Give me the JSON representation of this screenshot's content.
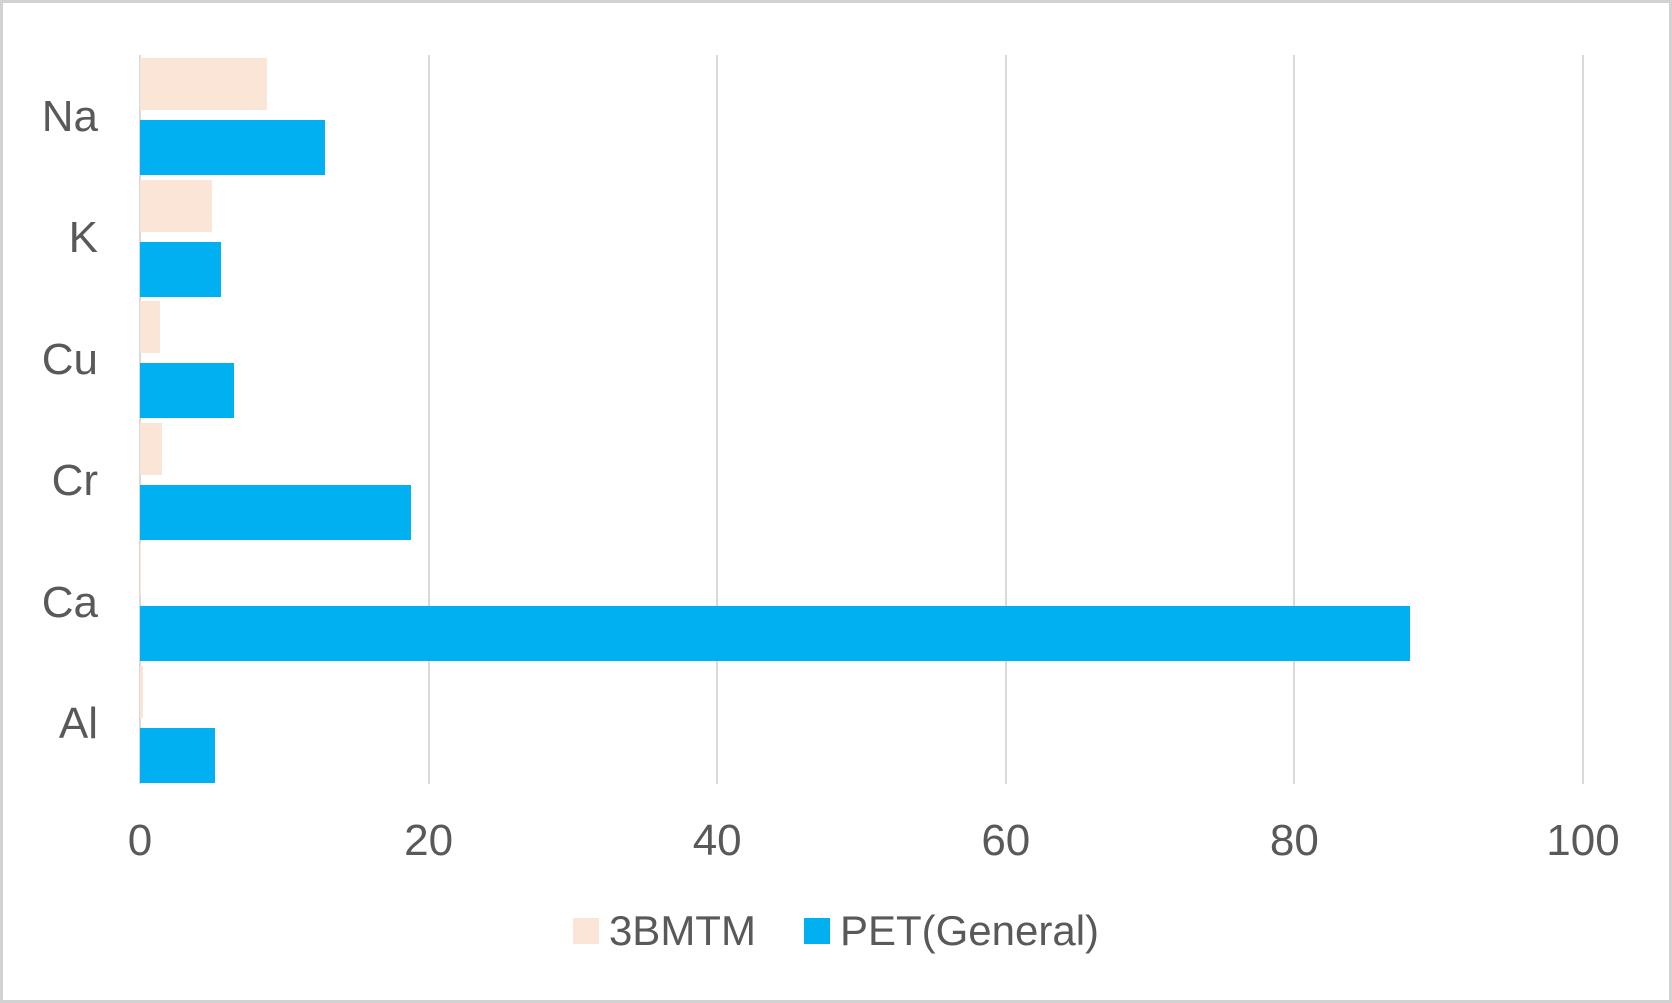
{
  "chart_data": {
    "type": "bar",
    "orientation": "horizontal",
    "title": "",
    "categories": [
      "Na",
      "K",
      "Cu",
      "Cr",
      "Ca",
      "Al"
    ],
    "series": [
      {
        "name": "3BMTM",
        "color": "#FBE5D6",
        "values": [
          8.8,
          5.0,
          1.4,
          1.5,
          0.1,
          0.2
        ]
      },
      {
        "name": "PET(General)",
        "color": "#00B0F0",
        "values": [
          12.8,
          5.6,
          6.5,
          18.8,
          88.0,
          5.2
        ]
      }
    ],
    "x_axis": {
      "min": 0,
      "max": 100,
      "ticks": [
        0,
        20,
        40,
        60,
        80,
        100
      ]
    },
    "y_axis_note": "categories listed top-to-bottom as displayed",
    "grid": true,
    "legend_position": "bottom",
    "colors": {
      "text": "#595959",
      "gridline": "#d9d9d9",
      "figure_border": "#d2d2d2",
      "background": "#ffffff"
    }
  }
}
